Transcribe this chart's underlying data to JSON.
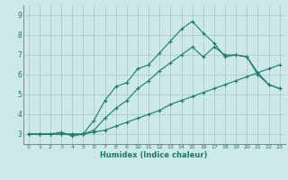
{
  "xlabel": "Humidex (Indice chaleur)",
  "xlim": [
    -0.5,
    23.5
  ],
  "ylim": [
    2.5,
    9.5
  ],
  "xticks": [
    0,
    1,
    2,
    3,
    4,
    5,
    6,
    7,
    8,
    9,
    10,
    11,
    12,
    13,
    14,
    15,
    16,
    17,
    18,
    19,
    20,
    21,
    22,
    23
  ],
  "yticks": [
    3,
    4,
    5,
    6,
    7,
    8,
    9
  ],
  "bg_color": "#cce8e8",
  "grid_color": "#aacccc",
  "line_color": "#1a7a6e",
  "line1_x": [
    0,
    1,
    2,
    3,
    4,
    5,
    6,
    7,
    8,
    9,
    10,
    11,
    12,
    13,
    14,
    15,
    16,
    17,
    18,
    19,
    20,
    21,
    22,
    23
  ],
  "line1_y": [
    3.0,
    3.0,
    3.0,
    3.0,
    3.0,
    3.0,
    3.1,
    3.2,
    3.4,
    3.6,
    3.8,
    4.0,
    4.2,
    4.5,
    4.7,
    4.9,
    5.1,
    5.3,
    5.5,
    5.7,
    5.9,
    6.1,
    6.3,
    6.5
  ],
  "line2_x": [
    0,
    1,
    2,
    3,
    4,
    5,
    6,
    7,
    8,
    9,
    10,
    11,
    12,
    13,
    14,
    15,
    16,
    17,
    18,
    19,
    20,
    21,
    22,
    23
  ],
  "line2_y": [
    3.0,
    3.0,
    3.0,
    3.0,
    3.0,
    3.0,
    3.2,
    3.8,
    4.3,
    4.7,
    5.3,
    5.7,
    6.2,
    6.6,
    7.0,
    7.4,
    6.9,
    7.4,
    7.0,
    7.0,
    6.9,
    6.0,
    5.5,
    5.3
  ],
  "line3_x": [
    0,
    1,
    2,
    3,
    4,
    5,
    6,
    7,
    8,
    9,
    10,
    11,
    12,
    13,
    14,
    15,
    16,
    17,
    18,
    19,
    20,
    21,
    22,
    23
  ],
  "line3_y": [
    3.0,
    3.0,
    3.0,
    3.1,
    2.9,
    3.0,
    3.7,
    4.7,
    5.4,
    5.6,
    6.3,
    6.5,
    7.1,
    7.7,
    8.3,
    8.7,
    8.1,
    7.6,
    6.9,
    7.0,
    6.9,
    6.1,
    5.5,
    5.3
  ]
}
